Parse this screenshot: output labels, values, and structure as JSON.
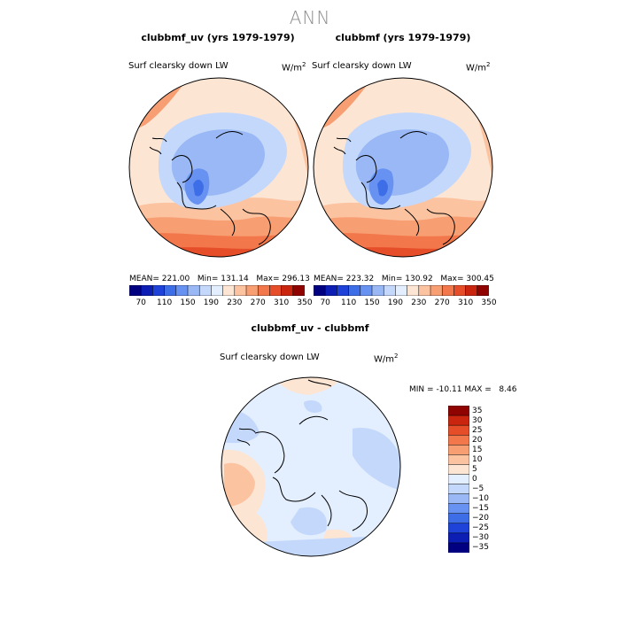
{
  "page": {
    "title": "ANN"
  },
  "panels": [
    {
      "title": "clubbmf_uv (yrs 1979-1979)",
      "field": "Surf clearsky down LW",
      "units": "W/m",
      "units_exp": "2",
      "stats": {
        "mean": "221.00",
        "min": "131.14",
        "max": "296.13"
      }
    },
    {
      "title": "clubbmf (yrs 1979-1979)",
      "field": "Surf clearsky down LW",
      "units": "W/m",
      "units_exp": "2",
      "stats": {
        "mean": "223.32",
        "min": "130.92",
        "max": "300.45"
      }
    }
  ],
  "stats_labels": {
    "mean": "MEAN=",
    "min": "Min=",
    "max": "Max="
  },
  "colorbar_top": {
    "colors": [
      "#000080",
      "#0d1eb5",
      "#1f43d9",
      "#3d6ee8",
      "#6792f2",
      "#99b8f5",
      "#c3d8fb",
      "#e3eeff",
      "#fde5d4",
      "#fcc3a1",
      "#f89e73",
      "#f2784c",
      "#e64e29",
      "#c9250f",
      "#8f0300"
    ],
    "tick_labels": [
      "70",
      "110",
      "150",
      "190",
      "230",
      "270",
      "310",
      "350"
    ]
  },
  "diff": {
    "title": "clubbmf_uv - clubbmf",
    "field": "Surf clearsky down LW",
    "units": "W/m",
    "units_exp": "2",
    "minmax": {
      "min_label": "MIN =",
      "min": "-10.11",
      "max_label": "MAX =",
      "max": "8.46"
    },
    "colorbar": {
      "colors": [
        "#8f0300",
        "#c9250f",
        "#e64e29",
        "#f2784c",
        "#f89e73",
        "#fcc3a1",
        "#fde5d4",
        "#e3eeff",
        "#c3d8fb",
        "#99b8f5",
        "#6792f2",
        "#3d6ee8",
        "#1f43d9",
        "#0d1eb5",
        "#000080"
      ],
      "labels": [
        "35",
        "30",
        "25",
        "20",
        "15",
        "10",
        "5",
        "0",
        "−5",
        "−10",
        "−15",
        "−20",
        "−25",
        "−30",
        "−35"
      ]
    }
  }
}
